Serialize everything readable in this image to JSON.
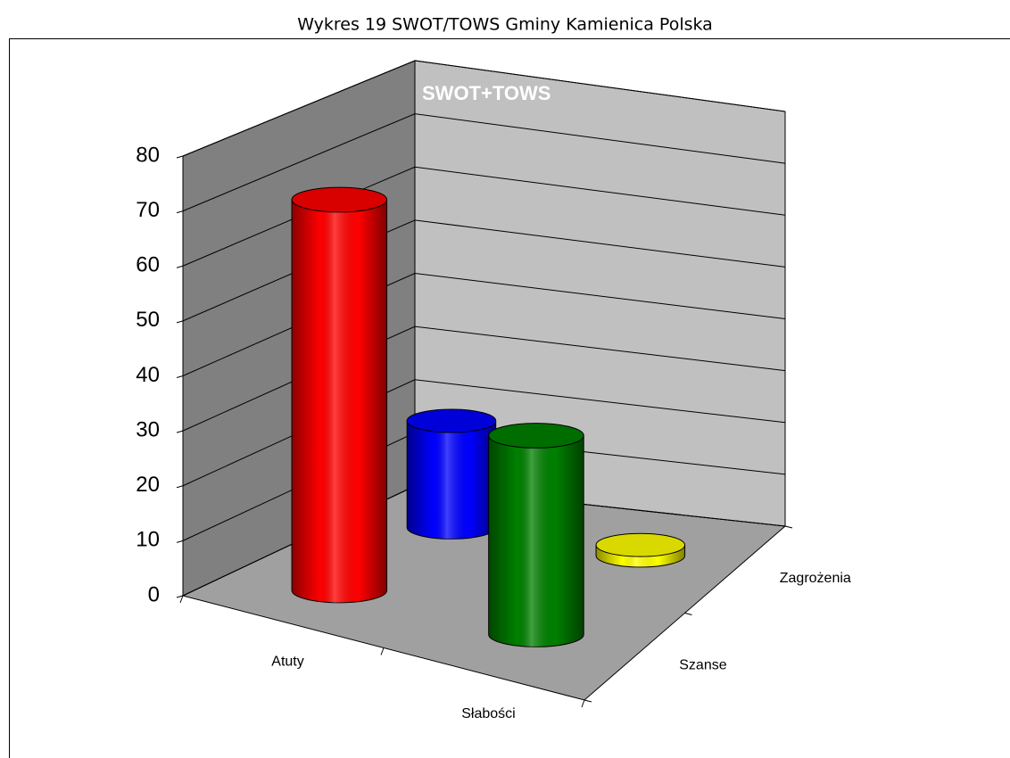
{
  "chart_data": {
    "type": "bar3d-cylinder",
    "title": "Wykres 19 SWOT/TOWS Gminy Kamienica Polska",
    "annotation": "SWOT+TOWS",
    "categories": [
      "Atuty",
      "Słabości"
    ],
    "series": [
      {
        "name": "Szanse",
        "colors": [
          "#ff0000",
          "#008000"
        ],
        "values": [
          72,
          37
        ]
      },
      {
        "name": "Zagrożenia",
        "colors": [
          "#0000ff",
          "#ffff00"
        ],
        "values": [
          20,
          2
        ]
      }
    ],
    "ylim": [
      0,
      80
    ],
    "yticks": [
      0,
      10,
      20,
      30,
      40,
      50,
      60,
      70,
      80
    ],
    "grid": true
  }
}
